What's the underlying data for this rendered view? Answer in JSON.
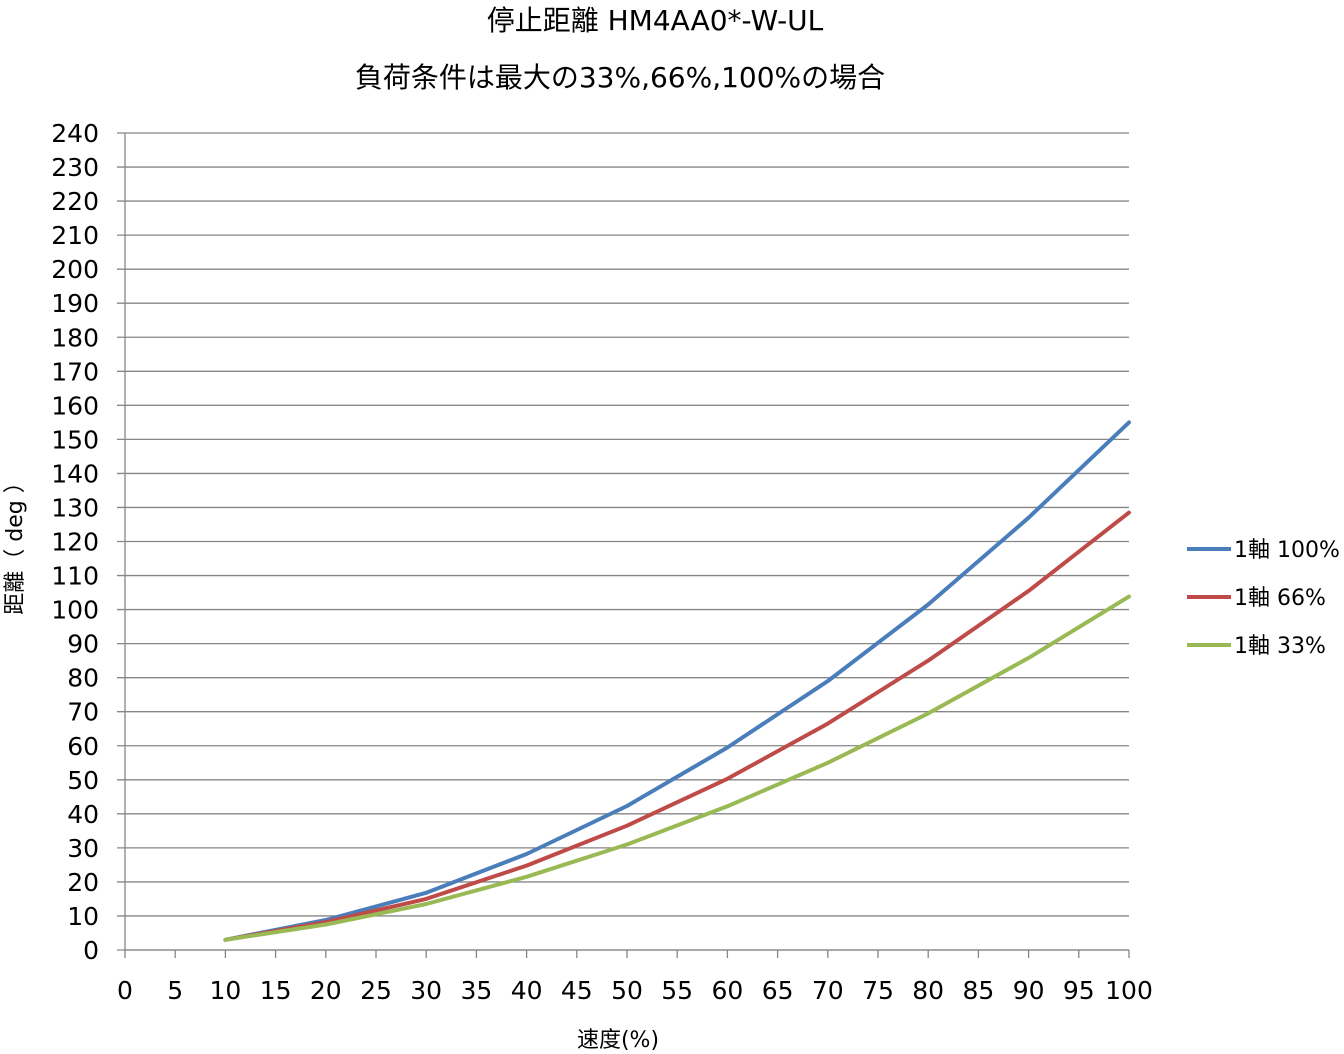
{
  "chart_data": {
    "type": "line",
    "title": "停止距離 HM4AA0*-W-UL",
    "subtitle": "負荷条件は最大の33%,66%,100%の場合",
    "xlabel": "速度(%)",
    "ylabel": "距離（ deg ）",
    "xlim": [
      0,
      100
    ],
    "ylim": [
      0,
      240
    ],
    "x_ticks": [
      0,
      5,
      10,
      15,
      20,
      25,
      30,
      35,
      40,
      45,
      50,
      55,
      60,
      65,
      70,
      75,
      80,
      85,
      90,
      95,
      100
    ],
    "y_ticks": [
      0,
      10,
      20,
      30,
      40,
      50,
      60,
      70,
      80,
      90,
      100,
      110,
      120,
      130,
      140,
      150,
      160,
      170,
      180,
      190,
      200,
      210,
      220,
      230,
      240
    ],
    "grid": true,
    "legend_position": "right",
    "x": [
      10,
      20,
      30,
      40,
      50,
      60,
      70,
      80,
      90,
      100
    ],
    "series": [
      {
        "name": "1軸 100%",
        "color": "#4a7ebb",
        "values": [
          3,
          8.8,
          16.8,
          28.2,
          42.3,
          59.5,
          79,
          101.5,
          127,
          155
        ]
      },
      {
        "name": "1軸 66%",
        "color": "#be4b48",
        "values": [
          3,
          8.2,
          15,
          24.8,
          36.5,
          50.3,
          66.5,
          85,
          105.5,
          128.5
        ]
      },
      {
        "name": "1軸 33%",
        "color": "#98b954",
        "values": [
          3,
          7.5,
          13.5,
          21.5,
          31,
          42.2,
          55,
          69.5,
          85.8,
          103.8
        ]
      }
    ]
  }
}
